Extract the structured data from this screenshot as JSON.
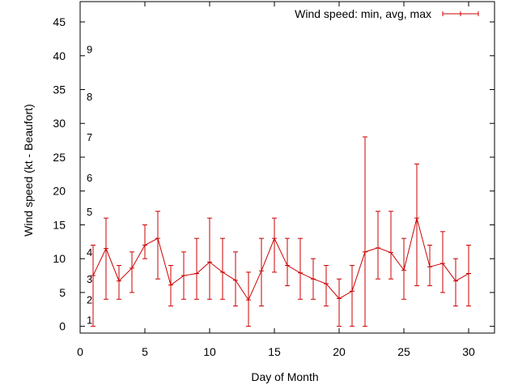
{
  "chart_data": {
    "type": "line",
    "title": "",
    "xlabel": "Day of Month",
    "ylabel": "Wind speed (kt - Beaufort)",
    "xlim": [
      0,
      32
    ],
    "ylim": [
      -1,
      48
    ],
    "x_ticks": [
      "0",
      "5",
      "10",
      "15",
      "20",
      "25",
      "30"
    ],
    "y_ticks": [
      "0",
      "5",
      "10",
      "15",
      "20",
      "25",
      "30",
      "35",
      "40",
      "45"
    ],
    "beaufort_labels": [
      {
        "label": "1",
        "value": 1
      },
      {
        "label": "2",
        "value": 4
      },
      {
        "label": "3",
        "value": 7
      },
      {
        "label": "4",
        "value": 11
      },
      {
        "label": "5",
        "value": 17
      },
      {
        "label": "6",
        "value": 22
      },
      {
        "label": "7",
        "value": 28
      },
      {
        "label": "8",
        "value": 34
      },
      {
        "label": "9",
        "value": 41
      }
    ],
    "legend": {
      "label": "Wind speed: min, avg, max",
      "position": "top-right"
    },
    "grid": false,
    "color": "#cc0000",
    "series": [
      {
        "name": "Wind speed: min, avg, max",
        "x": [
          1,
          2,
          3,
          4,
          5,
          6,
          7,
          8,
          9,
          10,
          11,
          12,
          13,
          14,
          15,
          16,
          17,
          18,
          19,
          20,
          21,
          22,
          23,
          24,
          25,
          26,
          27,
          28,
          29,
          30
        ],
        "avg": [
          7.5,
          11.5,
          6.7,
          8.6,
          12,
          13,
          6.1,
          7.5,
          7.8,
          9.5,
          8,
          6.8,
          3.9,
          8.2,
          13,
          9,
          7.9,
          7,
          6.3,
          4.1,
          5.2,
          11,
          11.6,
          10.9,
          8.3,
          16,
          8.8,
          9.3,
          6.7,
          7.8
        ],
        "min": [
          0,
          4,
          4,
          5,
          10,
          7,
          3,
          4,
          4,
          4,
          4,
          3,
          0,
          3,
          8,
          6,
          4,
          4,
          3,
          0,
          0,
          0,
          7,
          7,
          4,
          6,
          6,
          5,
          3,
          3
        ],
        "max": [
          12,
          16,
          9,
          11,
          15,
          17,
          9,
          11,
          13,
          16,
          13,
          11,
          8,
          13,
          16,
          13,
          13,
          10,
          9,
          7,
          9,
          28,
          17,
          17,
          13,
          24,
          12,
          14,
          10,
          12
        ]
      }
    ]
  }
}
